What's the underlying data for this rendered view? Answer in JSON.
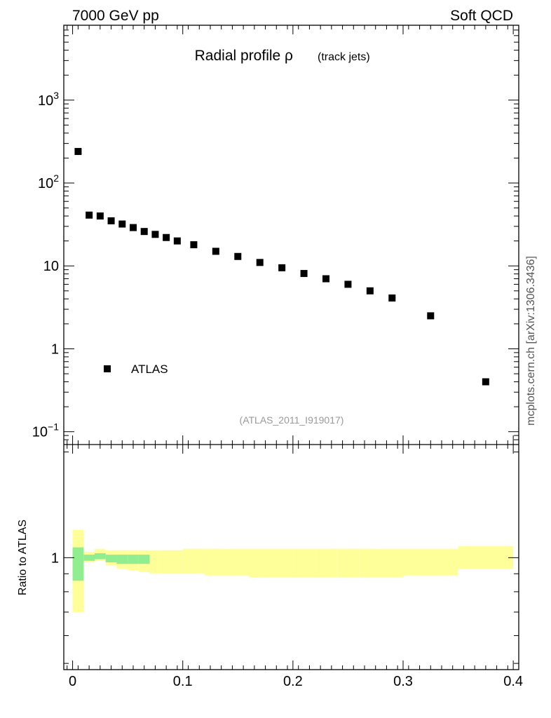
{
  "header": {
    "left": "7000 GeV pp",
    "right": "Soft QCD"
  },
  "side_label": "mcplots.cern.ch [arXiv:1306.3436]",
  "analysis_tag": "(ATLAS_2011_I919017)",
  "chart_data": [
    {
      "type": "scatter",
      "title": "Radial profile ρ",
      "title_suffix": "(track jets)",
      "y_scale": "log",
      "xlim": [
        -0.008,
        0.405
      ],
      "ylim": [
        0.07,
        8000
      ],
      "y_ticks": [
        {
          "value": 0.1,
          "label": "10",
          "exp": "−1"
        },
        {
          "value": 1,
          "label": "1",
          "exp": ""
        },
        {
          "value": 10,
          "label": "10",
          "exp": ""
        },
        {
          "value": 100,
          "label": "10",
          "exp": "2"
        },
        {
          "value": 1000,
          "label": "10",
          "exp": "3"
        }
      ],
      "legend_position": "bottom-left",
      "series": [
        {
          "name": "ATLAS",
          "color": "#000000",
          "x": [
            0.005,
            0.015,
            0.025,
            0.035,
            0.045,
            0.055,
            0.065,
            0.075,
            0.085,
            0.095,
            0.11,
            0.13,
            0.15,
            0.17,
            0.19,
            0.21,
            0.23,
            0.25,
            0.27,
            0.29,
            0.325,
            0.375
          ],
          "y": [
            240,
            41,
            40,
            35,
            32,
            29,
            26,
            24,
            22,
            20,
            18,
            15,
            13,
            11,
            9.5,
            8.1,
            7.0,
            6.0,
            5.0,
            4.1,
            2.5,
            0.4
          ]
        }
      ]
    },
    {
      "type": "area",
      "ylabel": "Ratio to ATLAS",
      "y_scale": "log",
      "xlim": [
        -0.008,
        0.405
      ],
      "ylim": [
        0.48,
        2.1
      ],
      "x_ticks": [
        0,
        0.1,
        0.2,
        0.3,
        0.4
      ],
      "x_tick_labels": [
        "0",
        "0.1",
        "0.2",
        "0.3",
        "0.4"
      ],
      "y_ticks": [
        1
      ],
      "y_tick_labels": [
        "1"
      ],
      "bands": [
        {
          "color": "#ffff99",
          "bins": [
            [
              0,
              0.01,
              0.7,
              1.2
            ],
            [
              0.01,
              0.02,
              0.97,
              1.04
            ],
            [
              0.02,
              0.03,
              0.98,
              1.06
            ],
            [
              0.03,
              0.04,
              0.95,
              1.05
            ],
            [
              0.04,
              0.05,
              0.93,
              1.05
            ],
            [
              0.05,
              0.06,
              0.92,
              1.05
            ],
            [
              0.06,
              0.07,
              0.91,
              1.05
            ],
            [
              0.07,
              0.08,
              0.9,
              1.05
            ],
            [
              0.08,
              0.09,
              0.9,
              1.05
            ],
            [
              0.09,
              0.1,
              0.9,
              1.05
            ],
            [
              0.1,
              0.12,
              0.9,
              1.06
            ],
            [
              0.12,
              0.14,
              0.89,
              1.06
            ],
            [
              0.14,
              0.16,
              0.89,
              1.06
            ],
            [
              0.16,
              0.18,
              0.88,
              1.06
            ],
            [
              0.18,
              0.2,
              0.88,
              1.06
            ],
            [
              0.2,
              0.22,
              0.88,
              1.06
            ],
            [
              0.22,
              0.24,
              0.88,
              1.06
            ],
            [
              0.24,
              0.26,
              0.88,
              1.06
            ],
            [
              0.26,
              0.28,
              0.88,
              1.06
            ],
            [
              0.28,
              0.3,
              0.88,
              1.06
            ],
            [
              0.3,
              0.35,
              0.89,
              1.06
            ],
            [
              0.35,
              0.4,
              0.93,
              1.08
            ]
          ]
        },
        {
          "color": "#90ee90",
          "bins": [
            [
              0,
              0.01,
              0.86,
              1.07
            ],
            [
              0.01,
              0.02,
              0.98,
              1.02
            ],
            [
              0.02,
              0.03,
              0.99,
              1.03
            ],
            [
              0.03,
              0.04,
              0.97,
              1.02
            ],
            [
              0.04,
              0.05,
              0.96,
              1.02
            ],
            [
              0.05,
              0.06,
              0.96,
              1.02
            ],
            [
              0.06,
              0.07,
              0.96,
              1.02
            ]
          ]
        }
      ]
    }
  ]
}
